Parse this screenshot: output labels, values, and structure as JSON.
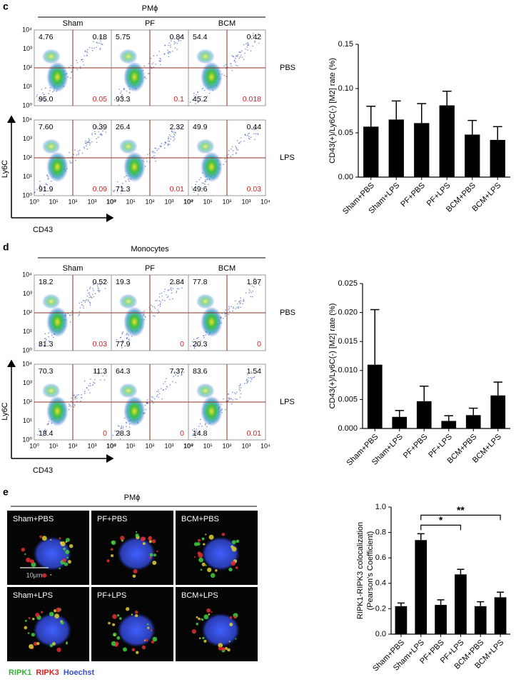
{
  "panels": [
    {
      "label": "c",
      "header": "PMϕ",
      "columns": [
        "Sham",
        "PF",
        "BCM"
      ],
      "rows": [
        "PBS",
        "LPS"
      ],
      "y_axis": "Ly6C",
      "x_axis": "CD43",
      "ticks": [
        "10⁰",
        "10¹",
        "10²",
        "10³",
        "10⁴"
      ],
      "quadrants": [
        [
          [
            "4.76",
            "0.18",
            "95.0",
            "0.05"
          ],
          [
            "5.75",
            "0.84",
            "93.3",
            "0.1"
          ],
          [
            "54.4",
            "0.42",
            "45.2",
            "0.018"
          ]
        ],
        [
          [
            "7.60",
            "0.39",
            "91.9",
            "0.09"
          ],
          [
            "26.4",
            "2.32",
            "71.3",
            "0.01"
          ],
          [
            "49.9",
            "0.44",
            "49.6",
            "0.03"
          ]
        ]
      ]
    },
    {
      "label": "d",
      "header": "Monocytes",
      "columns": [
        "Sham",
        "PF",
        "BCM"
      ],
      "rows": [
        "PBS",
        "LPS"
      ],
      "y_axis": "Ly6C",
      "x_axis": "CD43",
      "ticks": [
        "10⁰",
        "10¹",
        "10²",
        "10³",
        "10⁴"
      ],
      "quadrants": [
        [
          [
            "18.2",
            "0.52",
            "81.3",
            "0.03"
          ],
          [
            "19.3",
            "2.84",
            "77.9",
            "0"
          ],
          [
            "77.8",
            "1.87",
            "20.3",
            "0"
          ]
        ],
        [
          [
            "70.3",
            "11.3",
            "18.4",
            "0"
          ],
          [
            "64.3",
            "7.37",
            "28.3",
            "0"
          ],
          [
            "83.6",
            "1.54",
            "14.8",
            "0.01"
          ]
        ]
      ]
    },
    {
      "label": "e",
      "header": "PMϕ",
      "images": [
        "Sham+PBS",
        "PF+PBS",
        "BCM+PBS",
        "Sham+LPS",
        "PF+LPS",
        "BCM+LPS"
      ],
      "scale_bar": "10μm",
      "legend": [
        {
          "name": "RIPK1",
          "color": "#2fb52f"
        },
        {
          "name": "RIPK3",
          "color": "#e02020"
        },
        {
          "name": "Hoechst",
          "color": "#3a4fd0"
        }
      ]
    }
  ],
  "chart_data": [
    {
      "type": "bar",
      "ylabel": "CD43(+)/Ly6C(-) [M2] rate (%)",
      "color": "#000000",
      "categories": [
        "Sham+PBS",
        "Sham+LPS",
        "PF+PBS",
        "PF+LPS",
        "BCM+PBS",
        "BCM+LPS"
      ],
      "values": [
        0.057,
        0.065,
        0.061,
        0.081,
        0.048,
        0.042
      ],
      "errors": [
        0.023,
        0.021,
        0.022,
        0.016,
        0.016,
        0.015
      ],
      "ylim": [
        0,
        0.15
      ],
      "yticks": [
        {
          "value": 0,
          "label": "0.00"
        },
        0.05,
        {
          "value": 0.1,
          "label": "0.10"
        },
        0.15
      ]
    },
    {
      "type": "bar",
      "ylabel": "CD43(+)/Ly6C(-) [M2] rate (%)",
      "color": "#000000",
      "categories": [
        "Sham+PBS",
        "Sham+LPS",
        "PF+PBS",
        "PF+LPS",
        "BCM+PBS",
        "BCM+LPS"
      ],
      "values": [
        0.011,
        0.002,
        0.0047,
        0.0013,
        0.0023,
        0.0057
      ],
      "errors": [
        0.0095,
        0.0011,
        0.0026,
        0.0009,
        0.0012,
        0.0023
      ],
      "ylim": [
        0,
        0.025
      ],
      "yticks": [
        {
          "value": 0,
          "label": "0.000"
        },
        0.005,
        {
          "value": 0.01,
          "label": "0.010"
        },
        0.015,
        {
          "value": 0.02,
          "label": "0.020"
        },
        0.025
      ]
    },
    {
      "type": "bar",
      "ylabel": [
        "RIPK1-RIPK3 colocalization",
        "(Pearson's Coefficient)"
      ],
      "color": "#000000",
      "categories": [
        "Sham+PBS",
        "Sham+LPS",
        "PF+PBS",
        "PF+LPS",
        "BCM+PBS",
        "BCM+LPS"
      ],
      "values": [
        0.22,
        0.74,
        0.23,
        0.47,
        0.22,
        0.29
      ],
      "errors": [
        0.025,
        0.05,
        0.04,
        0.04,
        0.035,
        0.04
      ],
      "ylim": [
        0,
        1
      ],
      "yticks": [
        {
          "value": 0,
          "label": "0.0"
        },
        0.2,
        0.4,
        0.6,
        0.8,
        {
          "value": 1,
          "label": "1.0"
        }
      ],
      "comparisons": [
        {
          "label": "*",
          "groups": [
            "Sham+LPS",
            "PF+LPS"
          ]
        },
        {
          "label": "**",
          "groups": [
            "Sham+LPS",
            "BCM+LPS"
          ]
        }
      ]
    }
  ]
}
